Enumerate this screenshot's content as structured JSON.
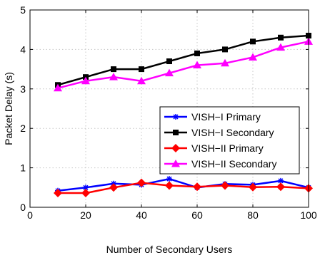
{
  "chart_data": {
    "type": "line",
    "xlabel": "Number of Secondary Users",
    "ylabel": "Packet Delay (s)",
    "xlim": [
      0,
      100
    ],
    "ylim": [
      0,
      5
    ],
    "grid": true,
    "legend_position": "center-right",
    "x_ticks": [
      0,
      20,
      40,
      60,
      80,
      100
    ],
    "y_ticks": [
      0,
      1,
      2,
      3,
      4,
      5
    ],
    "x": [
      10,
      20,
      30,
      40,
      50,
      60,
      70,
      80,
      90,
      100
    ],
    "series": [
      {
        "name": "VISH−I Primary",
        "color": "#0000ff",
        "marker": "asterisk",
        "values": [
          0.42,
          0.5,
          0.6,
          0.57,
          0.72,
          0.5,
          0.59,
          0.57,
          0.67,
          0.5
        ]
      },
      {
        "name": "VISH−I Secondary",
        "color": "#000000",
        "marker": "square",
        "values": [
          3.1,
          3.3,
          3.5,
          3.5,
          3.7,
          3.9,
          4.0,
          4.2,
          4.3,
          4.35
        ]
      },
      {
        "name": "VISH−II Primary",
        "color": "#ff0000",
        "marker": "diamond",
        "values": [
          0.36,
          0.36,
          0.5,
          0.62,
          0.55,
          0.52,
          0.55,
          0.51,
          0.52,
          0.48
        ]
      },
      {
        "name": "VISH−II Secondary",
        "color": "#ff00ff",
        "marker": "triangle",
        "values": [
          3.02,
          3.2,
          3.3,
          3.2,
          3.4,
          3.6,
          3.65,
          3.8,
          4.05,
          4.2
        ]
      }
    ]
  }
}
